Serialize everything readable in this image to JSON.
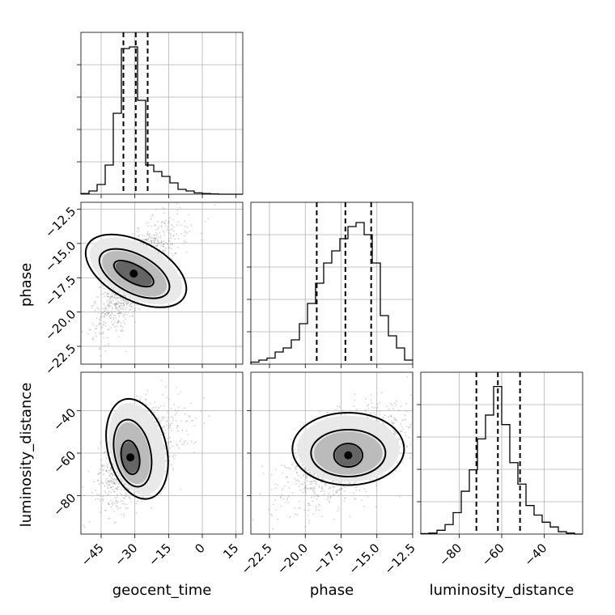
{
  "chart_data": {
    "type": "corner",
    "parameters": [
      "geocent_time",
      "phase",
      "luminosity_distance"
    ],
    "axes": {
      "geocent_time": {
        "xlim": [
          -54,
          18
        ],
        "ticks": [
          -45,
          -30,
          -15,
          0,
          15
        ],
        "tick_labels": [
          "−45",
          "−30",
          "−15",
          "0",
          "15"
        ]
      },
      "phase": {
        "xlim": [
          -23.8,
          -12.5
        ],
        "ticks": [
          -22.5,
          -20.0,
          -17.5,
          -15.0,
          -12.5
        ],
        "tick_labels": [
          "−22.5",
          "−20.0",
          "−17.5",
          "−15.0",
          "−12.5"
        ]
      },
      "luminosity_distance": {
        "xlim": [
          -98,
          -22
        ],
        "ticks": [
          -80,
          -60,
          -40
        ],
        "tick_labels": [
          "−80",
          "−60",
          "−40"
        ]
      }
    },
    "histograms": [
      {
        "param": "geocent_time",
        "bin_edges": [
          -54,
          -50.4,
          -46.8,
          -43.2,
          -39.6,
          -36,
          -32.4,
          -28.8,
          -25.2,
          -21.6,
          -18,
          -14.4,
          -10.8,
          -7.2,
          -3.6,
          0,
          3.6,
          7.2,
          10.8,
          14.4,
          18
        ],
        "counts": [
          0.2,
          1.0,
          3.0,
          9.0,
          25.0,
          45.0,
          45.5,
          29.0,
          9.0,
          7.0,
          5.5,
          3.5,
          1.5,
          1.0,
          0.4,
          0.2,
          0.1,
          0,
          0,
          0
        ],
        "ymax": 50,
        "quantiles": [
          -35.1,
          -29.6,
          -24.3
        ]
      },
      {
        "param": "phase",
        "bin_edges": [
          -23.8,
          -23.235,
          -22.67,
          -22.105,
          -21.54,
          -20.975,
          -20.41,
          -19.845,
          -19.28,
          -18.715,
          -18.15,
          -17.585,
          -17.02,
          -16.455,
          -15.89,
          -15.325,
          -14.76,
          -14.195,
          -13.63,
          -13.065,
          -12.5
        ],
        "counts": [
          0.5,
          1.0,
          1.5,
          3.0,
          4.0,
          6.0,
          10.0,
          15.0,
          20.0,
          25.0,
          28.0,
          31.0,
          34.0,
          35.0,
          32.0,
          25.0,
          12.0,
          7.0,
          4.0,
          1.0
        ],
        "ymax": 40,
        "quantiles": [
          -19.2,
          -17.2,
          -15.4
        ]
      },
      {
        "param": "luminosity_distance",
        "bin_edges": [
          -98,
          -94.2,
          -90.4,
          -86.6,
          -82.8,
          -79,
          -75.2,
          -71.4,
          -67.6,
          -63.8,
          -60,
          -56.2,
          -52.4,
          -48.6,
          -44.8,
          -41,
          -37.2,
          -33.4,
          -29.6,
          -25.8,
          -22
        ],
        "counts": [
          0.1,
          0.2,
          0.8,
          2.0,
          4.5,
          9.0,
          13.5,
          20.0,
          25.0,
          31.0,
          23.0,
          15.0,
          10.5,
          6.0,
          4.0,
          2.5,
          1.5,
          0.5,
          0.2,
          0
        ],
        "ymax": 34,
        "quantiles": [
          -71.9,
          -61.8,
          -51.4
        ]
      }
    ],
    "pairs": [
      {
        "x": "geocent_time",
        "y": "phase",
        "xlim": [
          -54,
          18
        ],
        "ylim": [
          -23.8,
          -12.0
        ],
        "ylabel": "phase",
        "yticks": [
          -22.5,
          -20.0,
          -17.5,
          -15.0,
          -12.5
        ],
        "ytick_labels": [
          "−22.5",
          "−20.0",
          "−17.5",
          "−15.0",
          "−12.5"
        ],
        "mean": [
          -30,
          -17.3
        ],
        "sd": [
          7.5,
          1.9
        ],
        "corr": 0.75,
        "contours": [
          {
            "center": [
              -30.5,
              -17.2
            ],
            "rx": 4,
            "ry": 1.6,
            "rot": 62
          },
          {
            "center": [
              -30.2,
              -17.2
            ],
            "rx": 8.5,
            "ry": 2.8,
            "rot": 62
          },
          {
            "center": [
              -29.5,
              -17.0
            ],
            "rx": 13,
            "ry": 4.0,
            "rot": 62
          }
        ]
      },
      {
        "x": "geocent_time",
        "y": "luminosity_distance",
        "xlim": [
          -54,
          18
        ],
        "ylim": [
          -98,
          -22
        ],
        "ylabel": "luminosity_distance",
        "yticks": [
          -80,
          -60,
          -40
        ],
        "ytick_labels": [
          "−80",
          "−60",
          "−40"
        ],
        "mean": [
          -30,
          -61
        ],
        "sd": [
          7.5,
          11
        ],
        "corr": 0.5,
        "contours": [
          {
            "center": [
              -32,
              -62
            ],
            "rx": 4,
            "ry": 8,
            "rot": 10
          },
          {
            "center": [
              -31,
              -60
            ],
            "rx": 8,
            "ry": 16,
            "rot": 12
          },
          {
            "center": [
              -29,
              -58
            ],
            "rx": 13,
            "ry": 24,
            "rot": 14
          }
        ]
      },
      {
        "x": "phase",
        "y": "luminosity_distance",
        "xlim": [
          -23.8,
          -12.5
        ],
        "ylim": [
          -98,
          -22
        ],
        "mean": [
          -17.3,
          -61
        ],
        "sd": [
          1.9,
          11
        ],
        "corr": 0.6,
        "contours": [
          {
            "center": [
              -17.0,
              -61
            ],
            "rx": 1.0,
            "ry": 5.5,
            "rot": 0
          },
          {
            "center": [
              -17.0,
              -60
            ],
            "rx": 2.6,
            "ry": 11,
            "rot": 0
          },
          {
            "center": [
              -17.0,
              -58
            ],
            "rx": 3.9,
            "ry": 17,
            "rot": 0
          }
        ]
      }
    ],
    "xlabels": [
      "geocent_time",
      "phase",
      "luminosity_distance"
    ]
  }
}
